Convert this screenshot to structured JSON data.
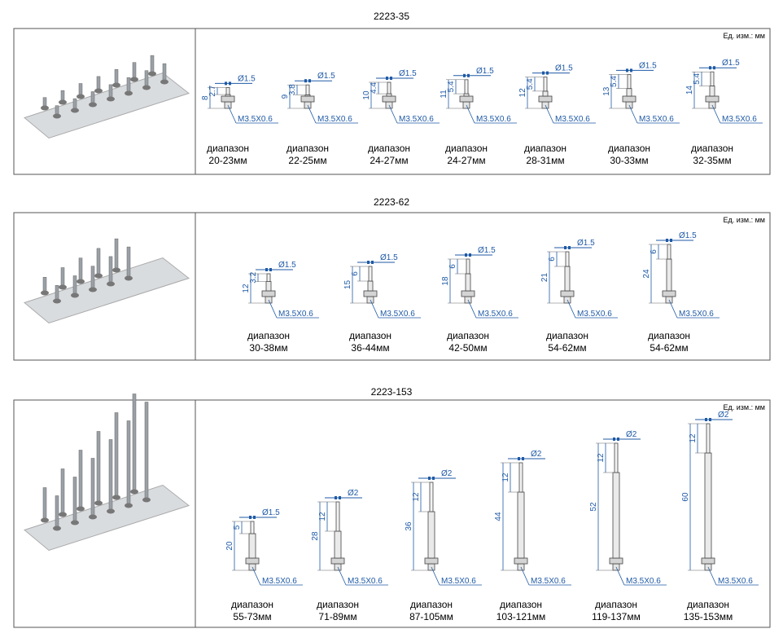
{
  "sections": [
    {
      "title": "2223-35",
      "unit": "Ед. изм.: мм",
      "items": [
        {
          "diameter": "Ø1.5",
          "tip": 2.7,
          "length": 8,
          "thread": "M3.5X0.6",
          "range_label": "диапазон",
          "range": "20-23мм"
        },
        {
          "diameter": "Ø1.5",
          "tip": 3.8,
          "length": 9,
          "thread": "M3.5X0.6",
          "range_label": "диапазон",
          "range": "22-25мм"
        },
        {
          "diameter": "Ø1.5",
          "tip": 4.4,
          "length": 10,
          "thread": "M3.5X0.6",
          "range_label": "диапазон",
          "range": "24-27мм"
        },
        {
          "diameter": "Ø1.5",
          "tip": 5.4,
          "length": 11,
          "thread": "M3.5X0.6",
          "range_label": "диапазон",
          "range": "24-27мм"
        },
        {
          "diameter": "Ø1.5",
          "tip": 5.4,
          "length": 12,
          "thread": "M3.5X0.6",
          "range_label": "диапазон",
          "range": "28-31мм"
        },
        {
          "diameter": "Ø1.5",
          "tip": 5.4,
          "length": 13,
          "thread": "M3.5X0.6",
          "range_label": "диапазон",
          "range": "30-33мм"
        },
        {
          "diameter": "Ø1.5",
          "tip": 5.4,
          "length": 14,
          "thread": "M3.5X0.6",
          "range_label": "диапазон",
          "range": "32-35мм"
        }
      ]
    },
    {
      "title": "2223-62",
      "unit": "Ед. изм.: мм",
      "items": [
        {
          "diameter": "Ø1.5",
          "tip": 3.2,
          "length": 12,
          "thread": "M3.5X0.6",
          "range_label": "диапазон",
          "range": "30-38мм"
        },
        {
          "diameter": "Ø1.5",
          "tip": 6,
          "length": 15,
          "thread": "M3.5X0.6",
          "range_label": "диапазон",
          "range": "36-44мм"
        },
        {
          "diameter": "Ø1.5",
          "tip": 6,
          "length": 18,
          "thread": "M3.5X0.6",
          "range_label": "диапазон",
          "range": "42-50мм"
        },
        {
          "diameter": "Ø1.5",
          "tip": 6,
          "length": 21,
          "thread": "M3.5X0.6",
          "range_label": "диапазон",
          "range": "54-62мм"
        },
        {
          "diameter": "Ø1.5",
          "tip": 6,
          "length": 24,
          "thread": "M3.5X0.6",
          "range_label": "диапазон",
          "range": "54-62мм"
        }
      ]
    },
    {
      "title": "2223-153",
      "unit": "Ед. изм.: мм",
      "items": [
        {
          "diameter": "Ø1.5",
          "tip": 5,
          "length": 20,
          "thread": "M3.5X0.6",
          "range_label": "диапазон",
          "range": "55-73мм"
        },
        {
          "diameter": "Ø2",
          "tip": 12,
          "length": 28,
          "thread": "M3.5X0.6",
          "range_label": "диапазон",
          "range": "71-89мм"
        },
        {
          "diameter": "Ø2",
          "tip": 12,
          "length": 36,
          "thread": "M3.5X0.6",
          "range_label": "диапазон",
          "range": "87-105мм"
        },
        {
          "diameter": "Ø2",
          "tip": 12,
          "length": 44,
          "thread": "M3.5X0.6",
          "range_label": "диапазон",
          "range": "103-121мм"
        },
        {
          "diameter": "Ø2",
          "tip": 12,
          "length": 52,
          "thread": "M3.5X0.6",
          "range_label": "диапазон",
          "range": "119-137мм"
        },
        {
          "diameter": "Ø2",
          "tip": 12,
          "length": 60,
          "thread": "M3.5X0.6",
          "range_label": "диапазон",
          "range": "135-153мм"
        }
      ]
    }
  ]
}
